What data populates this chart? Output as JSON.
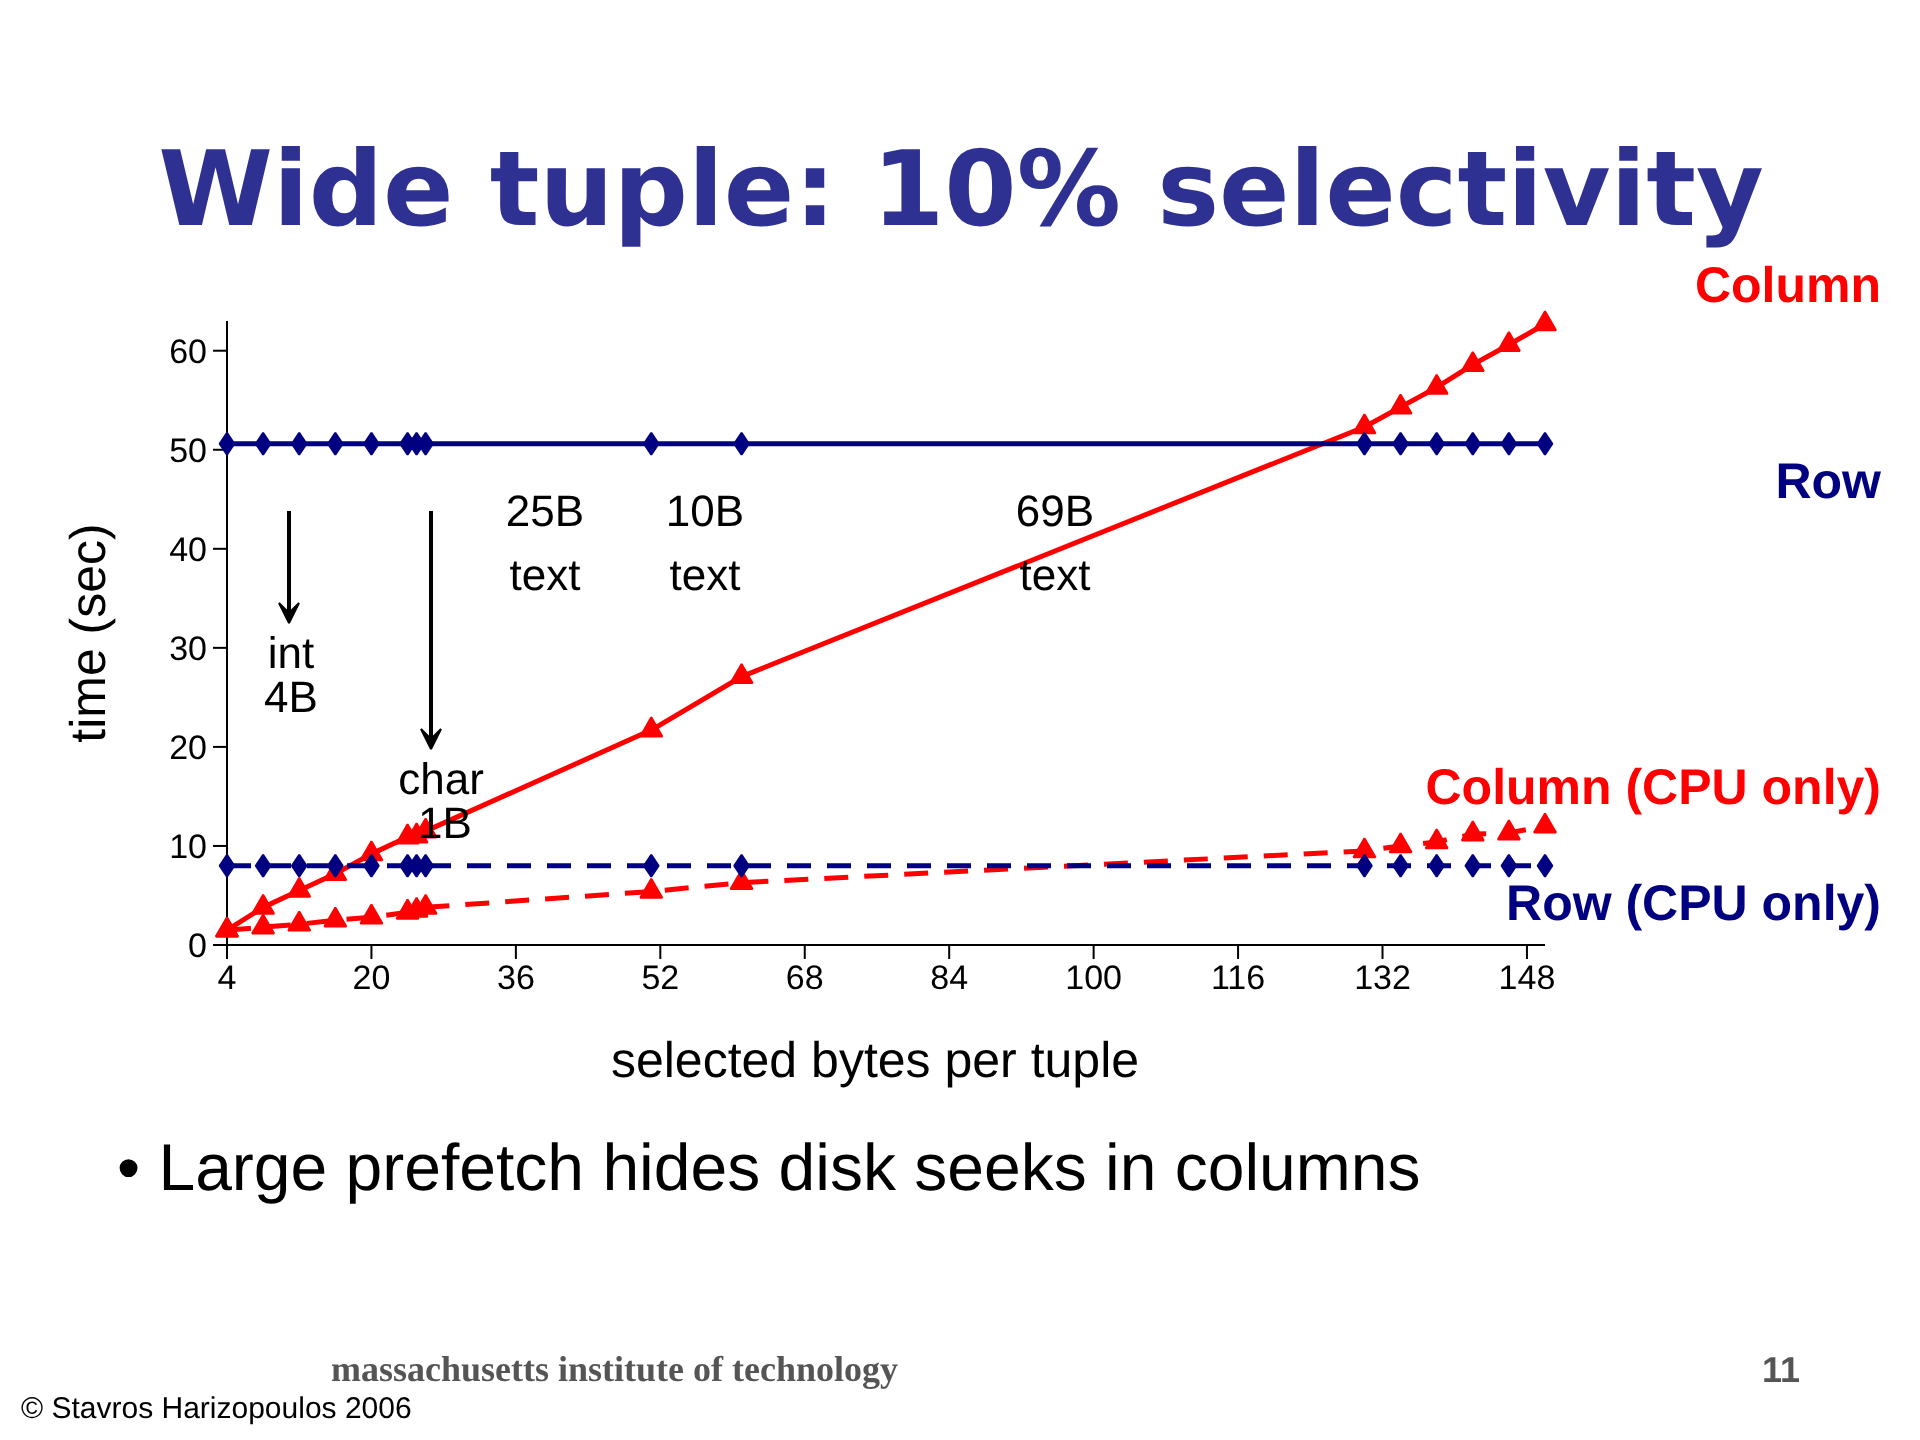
{
  "chart_data": {
    "type": "line",
    "title": "Wide tuple: 10% selectivity",
    "xlabel": "selected bytes per tuple",
    "ylabel": "time (sec)",
    "x": [
      4,
      8,
      12,
      16,
      20,
      24,
      25,
      26,
      51,
      61,
      130,
      134,
      138,
      142,
      146,
      150
    ],
    "series": [
      {
        "name": "Column",
        "color": "#ff0000",
        "marker": "triangle",
        "line_style": "solid",
        "values": [
          1.5,
          3.8,
          5.5,
          7.2,
          9.2,
          10.9,
          11.0,
          11.5,
          21.7,
          27.1,
          52.3,
          54.3,
          56.3,
          58.6,
          60.6,
          62.7
        ]
      },
      {
        "name": "Row",
        "color": "#000080",
        "marker": "diamond",
        "line_style": "solid",
        "values": [
          50.6,
          50.6,
          50.6,
          50.6,
          50.6,
          50.6,
          50.6,
          50.6,
          50.6,
          50.6,
          50.6,
          50.6,
          50.6,
          50.6,
          50.6,
          50.6
        ]
      },
      {
        "name": "Column (CPU only)",
        "color": "#ff0000",
        "marker": "triangle",
        "line_style": "dashed",
        "values": [
          1.5,
          1.8,
          2.1,
          2.5,
          2.8,
          3.3,
          3.5,
          3.8,
          5.4,
          6.3,
          9.5,
          10.0,
          10.4,
          11.2,
          11.3,
          12.0
        ]
      },
      {
        "name": "Row (CPU only)",
        "color": "#000080",
        "marker": "diamond",
        "line_style": "dashed",
        "values": [
          8.0,
          8.0,
          8.0,
          8.0,
          8.0,
          8.0,
          8.0,
          8.0,
          8.0,
          8.0,
          8.0,
          8.0,
          8.0,
          8.0,
          8.0,
          8.0
        ]
      }
    ],
    "xlim": [
      4,
      150
    ],
    "ylim": [
      0,
      63
    ],
    "xticks": [
      4,
      20,
      36,
      52,
      68,
      84,
      100,
      116,
      132,
      148
    ],
    "yticks": [
      0,
      10,
      20,
      30,
      40,
      50,
      60
    ],
    "grid": false,
    "annotations": [
      "25B",
      "text",
      "10B",
      "text",
      "69B",
      "text",
      "int",
      "4B",
      "char",
      "1B",
      "• Large prefetch hides disk seeks in columns",
      "massachusetts institute of technology",
      "11",
      "© Stavros Harizopoulos 2006"
    ]
  }
}
